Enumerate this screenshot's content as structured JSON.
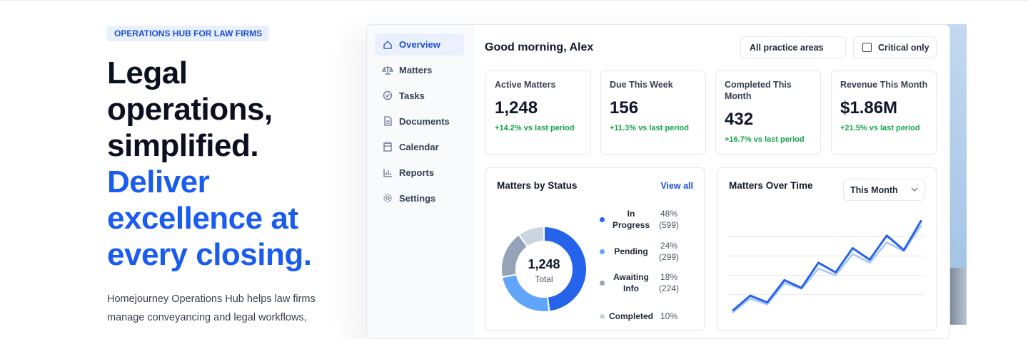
{
  "hero": {
    "badge": "OPERATIONS HUB FOR LAW FIRMS",
    "headline": [
      "Legal",
      "operations,",
      "simplified."
    ],
    "highlight": [
      "Deliver",
      "excellence at",
      "every closing."
    ],
    "description": [
      "Homejourney Operations Hub helps law firms",
      "manage conveyancing and legal workflows,"
    ]
  },
  "sidebar": {
    "items": [
      "Overview",
      "Matters",
      "Tasks",
      "Documents",
      "Calendar",
      "Reports",
      "Settings"
    ],
    "active": 0
  },
  "header": {
    "greeting": "Good morning, Alex",
    "filter": "All practice areas",
    "checkbox": "Critical only"
  },
  "kpis": [
    {
      "label": "Active Matters",
      "value": "1,248",
      "change": "+14.2% vs last period"
    },
    {
      "label": "Due This Week",
      "value": "156",
      "change": "+11.3% vs last period"
    },
    {
      "label": "Completed This Month",
      "value": "432",
      "change": "+16.7% vs last period"
    },
    {
      "label": "Revenue This Month",
      "value": "$1.86M",
      "change": "+21.5% vs last period"
    }
  ],
  "chart_data": [
    {
      "type": "pie",
      "donut": true,
      "title": "Matters by Status",
      "link": "View all",
      "center_value": "1,248",
      "center_label": "Total",
      "categories": [
        "In Progress",
        "Pending",
        "Awaiting Info",
        "Completed"
      ],
      "values": [
        48,
        24,
        18,
        10
      ],
      "value_labels": [
        "48%",
        "24%",
        "18%",
        "10%"
      ],
      "counts": [
        599,
        299,
        224,
        null
      ],
      "count_labels": [
        "(599)",
        "(299)",
        "(224)",
        null
      ],
      "colors": [
        "#2563eb",
        "#60a5fa",
        "#94a3b8",
        "#cbd5e1"
      ]
    },
    {
      "type": "line",
      "title": "Matters Over Time",
      "filter": "This Month",
      "x": [
        1,
        2,
        3,
        4,
        5,
        6,
        7,
        8,
        9,
        10,
        11,
        12
      ],
      "xlim": [
        1,
        12
      ],
      "ylim": [
        0,
        100
      ],
      "yticks": [
        20,
        40,
        60,
        80
      ],
      "grid": true,
      "series": [
        {
          "color": "#2563eb",
          "values": [
            4,
            19,
            12,
            35,
            27,
            53,
            43,
            68,
            56,
            81,
            66,
            96
          ]
        },
        {
          "color": "#a5c8f7",
          "values": [
            2,
            16,
            10,
            32,
            26,
            47,
            40,
            62,
            53,
            74,
            65,
            91
          ]
        }
      ]
    }
  ]
}
